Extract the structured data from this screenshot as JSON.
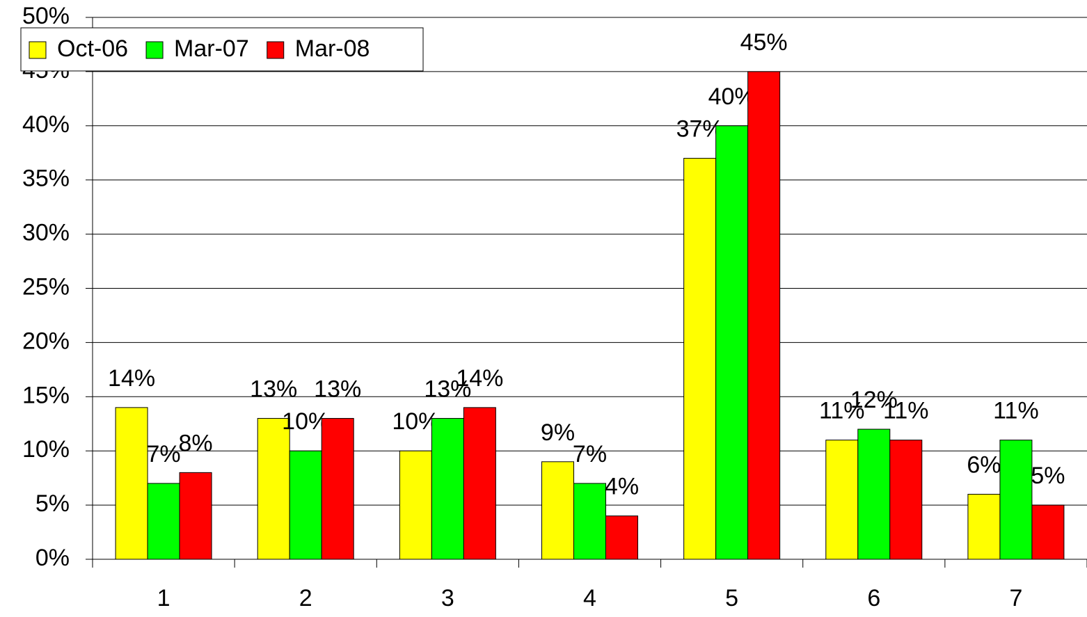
{
  "chart_data": {
    "type": "bar",
    "categories": [
      "1",
      "2",
      "3",
      "4",
      "5",
      "6",
      "7"
    ],
    "series": [
      {
        "name": "Oct-06",
        "color": "#ffff00",
        "values": [
          14,
          13,
          10,
          9,
          37,
          11,
          6
        ],
        "value_labels": [
          "14%",
          "13%",
          "10%",
          "9%",
          "37%",
          "11%",
          "6%"
        ]
      },
      {
        "name": "Mar-07",
        "color": "#00ff00",
        "values": [
          7,
          10,
          13,
          7,
          40,
          12,
          11
        ],
        "value_labels": [
          "7%",
          "10%",
          "13%",
          "7%",
          "40%",
          "12%",
          "11%"
        ]
      },
      {
        "name": "Mar-08",
        "color": "#ff0000",
        "values": [
          8,
          13,
          14,
          4,
          45,
          11,
          5
        ],
        "value_labels": [
          "8%",
          "13%",
          "14%",
          "4%",
          "45%",
          "11%",
          "5%"
        ]
      }
    ],
    "ylim": [
      0,
      50
    ],
    "yticks": [
      {
        "value": 0,
        "label": "0%"
      },
      {
        "value": 5,
        "label": "5%"
      },
      {
        "value": 10,
        "label": "10%"
      },
      {
        "value": 15,
        "label": "15%"
      },
      {
        "value": 20,
        "label": "20%"
      },
      {
        "value": 25,
        "label": "25%"
      },
      {
        "value": 30,
        "label": "30%"
      },
      {
        "value": 35,
        "label": "35%"
      },
      {
        "value": 40,
        "label": "40%"
      },
      {
        "value": 45,
        "label": "45%"
      },
      {
        "value": 50,
        "label": "50%"
      }
    ],
    "grid": true,
    "legend": "top-left"
  }
}
